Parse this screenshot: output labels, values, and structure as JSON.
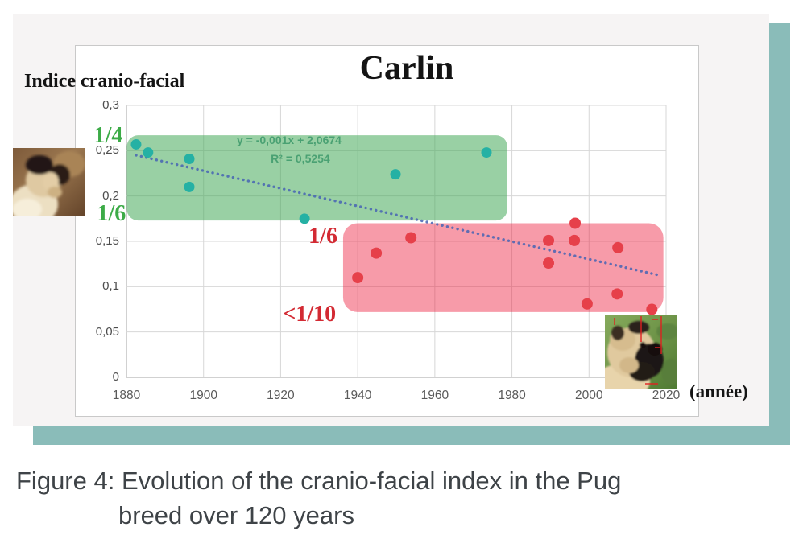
{
  "page": {
    "background": "#ffffff",
    "accent_color": "#8abcb9",
    "card_color": "#f6f4f4"
  },
  "caption": {
    "line1": "Figure 4: Evolution of the cranio-facial index in the Pug",
    "line2": "breed over 120 years"
  },
  "images": {
    "left_image": "pug-painting-historical",
    "right_image": "pug-photo-modern"
  },
  "chart_data": {
    "type": "scatter",
    "title": "Carlin",
    "y_axis_title": "Indice cranio-facial",
    "x_axis_title": "(année)",
    "xlim": [
      1880,
      2020
    ],
    "ylim": [
      0,
      0.3
    ],
    "grid": true,
    "x_ticks": [
      1880,
      1900,
      1920,
      1940,
      1960,
      1980,
      2000,
      2020
    ],
    "x_tick_labels": [
      "1880",
      "1900",
      "1920",
      "1940",
      "1960",
      "1980",
      "2000",
      "2020"
    ],
    "y_ticks": [
      0,
      0.05,
      0.1,
      0.15,
      0.2,
      0.25,
      0.3
    ],
    "y_tick_labels": [
      "0",
      "0,05",
      "0,1",
      "0,15",
      "0,2",
      "0,25",
      "0,3"
    ],
    "grid_color": "#d7d7d7",
    "axis_color": "#a3a3a3",
    "series": [
      {
        "name": "cranio-facial-index-historical",
        "color": "#25b1a4",
        "marker_radius": 6.5,
        "points": [
          [
            1882.5,
            0.257
          ],
          [
            1885.6,
            0.248
          ],
          [
            1896.3,
            0.241
          ],
          [
            1896.3,
            0.21
          ],
          [
            1926.2,
            0.175
          ],
          [
            1949.8,
            0.224
          ],
          [
            1973.4,
            0.248
          ]
        ]
      },
      {
        "name": "cranio-facial-index-modern",
        "color": "#e6404a",
        "marker_radius": 7,
        "points": [
          [
            1940.0,
            0.11
          ],
          [
            1944.8,
            0.137
          ],
          [
            1953.8,
            0.154
          ],
          [
            1989.5,
            0.151
          ],
          [
            1989.5,
            0.126
          ],
          [
            1996.2,
            0.151
          ],
          [
            1996.4,
            0.17
          ],
          [
            1999.5,
            0.081
          ],
          [
            2007.3,
            0.092
          ],
          [
            2007.5,
            0.143
          ],
          [
            2016.3,
            0.075
          ]
        ]
      }
    ],
    "trendline": {
      "equation": "y = -0,001x + 2,0674",
      "r_squared": "R² = 0,5254",
      "label_color": "#4aa173",
      "color": "rgba(70,100,180,0.85)",
      "from": [
        1882.5,
        0.245
      ],
      "to": [
        2018.8,
        0.112
      ],
      "label_anchor": [
        1922.2,
        0.262
      ]
    },
    "bands": [
      {
        "name": "historical-range-band",
        "color": "rgba(70,170,90,0.55)",
        "x": [
          1880.1,
          1978.8
        ],
        "y": [
          0.173,
          0.267
        ],
        "radius": 14
      },
      {
        "name": "modern-range-band",
        "color": "rgba(237,28,60,0.44)",
        "x": [
          1936.2,
          2019.3
        ],
        "y": [
          0.072,
          0.17
        ],
        "radius": 18
      }
    ],
    "annotations": [
      {
        "name": "ratio-label-one-quarter",
        "text": "1/4",
        "x": 1875.3,
        "y": 0.266,
        "color": "#3cab47",
        "size": 28
      },
      {
        "name": "ratio-label-one-sixth-green",
        "text": "1/6",
        "x": 1876.1,
        "y": 0.18,
        "color": "#3cab47",
        "size": 28
      },
      {
        "name": "ratio-label-one-sixth-red",
        "text": "1/6",
        "x": 1931.0,
        "y": 0.155,
        "color": "#d32a33",
        "size": 28
      },
      {
        "name": "ratio-label-under-one-tenth",
        "text": "<1/10",
        "x": 1927.5,
        "y": 0.069,
        "color": "#d32a33",
        "size": 28
      }
    ]
  }
}
